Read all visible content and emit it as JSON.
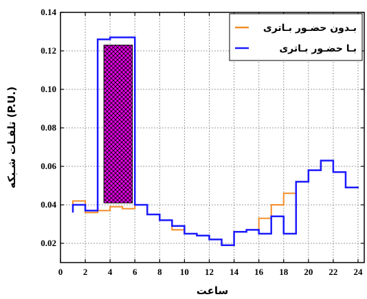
{
  "chart_data": {
    "type": "line",
    "title": "",
    "xlabel": "ساعت",
    "ylabel": "تلفـات شـبکه (P.U.)",
    "xlim": [
      0,
      24.5
    ],
    "ylim": [
      0.01,
      0.14
    ],
    "xticks": [
      0,
      2,
      4,
      6,
      8,
      10,
      12,
      14,
      16,
      18,
      20,
      22,
      24
    ],
    "yticks": [
      0.02,
      0.04,
      0.06,
      0.08,
      0.1,
      0.12,
      0.14
    ],
    "ytick_labels": [
      "0.02",
      "0.04",
      "0.06",
      "0.08",
      "0.10",
      "0.12",
      "0.14"
    ],
    "grid": true,
    "legend_position": "top-right",
    "series": [
      {
        "name": "بـدون حضـور بـاتری",
        "color": "#f28c28",
        "step": "hourly",
        "x": [
          1,
          2,
          3,
          4,
          5,
          6,
          7,
          8,
          9,
          10,
          11,
          12,
          13,
          14,
          15,
          16,
          17,
          18,
          19,
          20,
          21,
          22,
          23,
          24
        ],
        "values": [
          0.042,
          0.036,
          0.037,
          0.039,
          0.038,
          0.04,
          0.035,
          0.032,
          0.027,
          0.025,
          0.024,
          0.022,
          0.019,
          0.026,
          0.027,
          0.033,
          0.04,
          0.046,
          0.052,
          0.058,
          0.063,
          0.057,
          0.049,
          0.049
        ]
      },
      {
        "name": "بـا حضـور بـاتری",
        "color": "#1a1aff",
        "step": "hourly",
        "x": [
          1,
          2,
          3,
          4,
          5,
          6,
          7,
          8,
          9,
          10,
          11,
          12,
          13,
          14,
          15,
          16,
          17,
          18,
          19,
          20,
          21,
          22,
          23,
          24
        ],
        "values": [
          0.04,
          0.037,
          0.126,
          0.127,
          0.127,
          0.04,
          0.035,
          0.032,
          0.029,
          0.025,
          0.024,
          0.022,
          0.019,
          0.026,
          0.027,
          0.025,
          0.034,
          0.025,
          0.052,
          0.058,
          0.063,
          0.057,
          0.049,
          0.049
        ]
      }
    ],
    "annotations": [
      {
        "type": "hatched-rectangle",
        "x_range": [
          3.5,
          5.8
        ],
        "y_range": [
          0.041,
          0.123
        ],
        "fill": "#e600e6",
        "hatch": "crosshatch"
      }
    ]
  }
}
